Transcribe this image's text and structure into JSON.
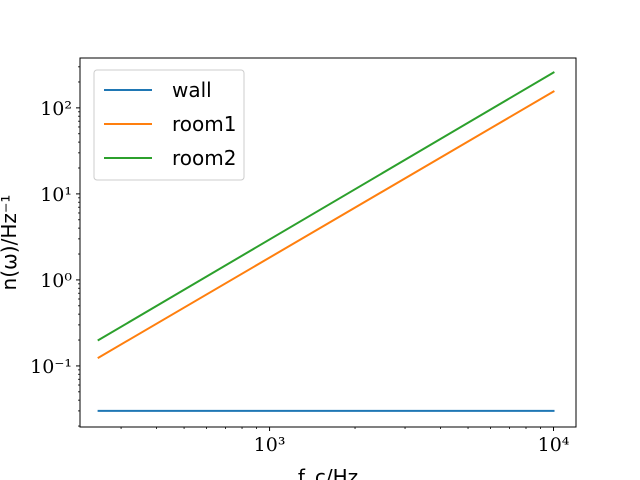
{
  "chart_data": {
    "type": "line",
    "title": "",
    "xlabel": "f_c/Hz",
    "ylabel": "n(ω)/Hz⁻¹",
    "x_scale": "log",
    "y_scale": "log",
    "xlim": [
      215,
      12000
    ],
    "ylim": [
      0.0195,
      380
    ],
    "x_ticks": [
      {
        "value": 1000,
        "label": "10³"
      },
      {
        "value": 10000,
        "label": "10⁴"
      }
    ],
    "y_ticks": [
      {
        "value": 0.1,
        "label": "10⁻¹"
      },
      {
        "value": 1,
        "label": "10⁰"
      },
      {
        "value": 10,
        "label": "10¹"
      },
      {
        "value": 100,
        "label": "10²"
      }
    ],
    "grid": false,
    "legend_position": "top-left",
    "series": [
      {
        "name": "wall",
        "color": "#1f77b4",
        "x": [
          250,
          10000
        ],
        "y": [
          0.03,
          0.03
        ]
      },
      {
        "name": "room1",
        "color": "#ff7f0e",
        "x": [
          250,
          10000
        ],
        "y": [
          0.125,
          155
        ]
      },
      {
        "name": "room2",
        "color": "#2ca02c",
        "x": [
          250,
          10000
        ],
        "y": [
          0.2,
          258
        ]
      }
    ]
  }
}
